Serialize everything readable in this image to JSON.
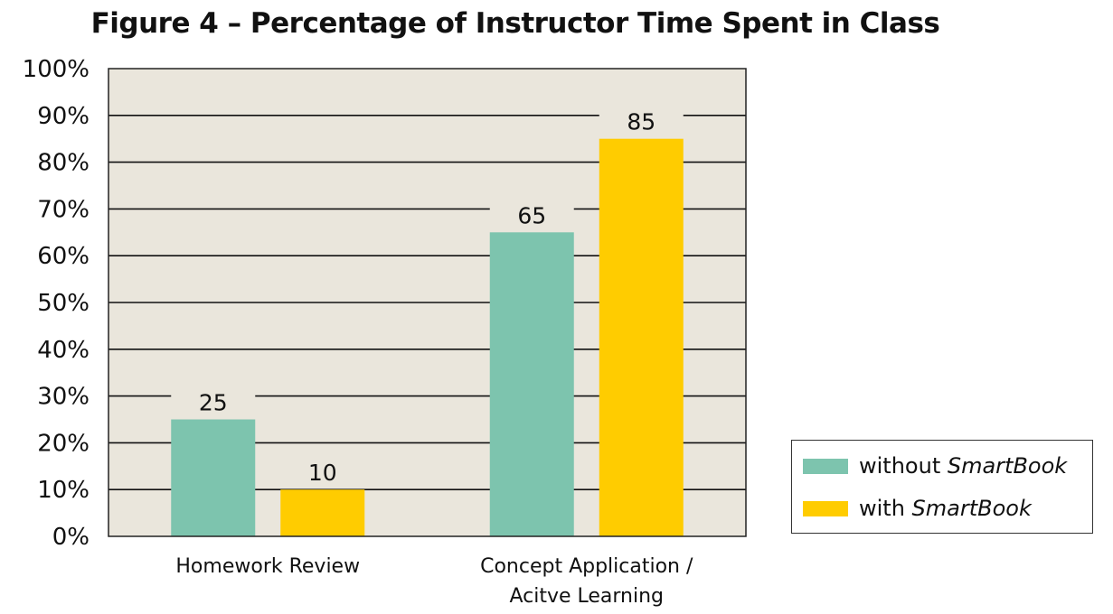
{
  "chart_data": {
    "type": "bar",
    "title": "Figure 4 – Percentage of Instructor Time Spent in Class",
    "categories": [
      [
        "Homework Review"
      ],
      [
        "Concept Application /",
        "Acitve Learning"
      ]
    ],
    "series": [
      {
        "name": "without SmartBook",
        "name_plain": "without ",
        "name_italic": "SmartBook",
        "color": "#7dc4ae",
        "values": [
          25,
          65
        ]
      },
      {
        "name": "with SmartBook",
        "name_plain": "with ",
        "name_italic": "SmartBook",
        "color": "#ffcc00",
        "values": [
          10,
          85
        ]
      }
    ],
    "ylim": [
      0,
      100
    ],
    "y_ticks": [
      "0%",
      "10%",
      "20%",
      "30%",
      "40%",
      "50%",
      "60%",
      "70%",
      "80%",
      "90%",
      "100%"
    ],
    "y_tick_values": [
      0,
      10,
      20,
      30,
      40,
      50,
      60,
      70,
      80,
      90,
      100
    ],
    "grid": true,
    "plot_background": "#eae6dc",
    "legend_position": "right"
  }
}
